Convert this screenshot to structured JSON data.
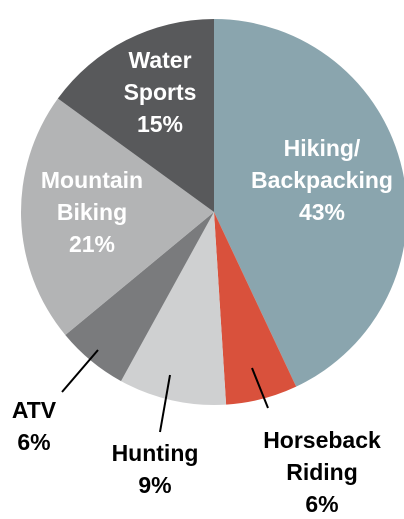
{
  "chart_data": {
    "type": "pie",
    "categories": [
      "Hiking/\nBackpacking",
      "Horseback\nRiding",
      "Hunting",
      "ATV",
      "Mountain\nBiking",
      "Water\nSports"
    ],
    "values": [
      43,
      6,
      9,
      6,
      21,
      15
    ],
    "value_labels": [
      "43%",
      "6%",
      "9%",
      "6%",
      "21%",
      "15%"
    ],
    "colors": [
      "#8aa5ae",
      "#d9513c",
      "#cfd0d1",
      "#7a7b7d",
      "#b3b4b5",
      "#58595b"
    ]
  }
}
